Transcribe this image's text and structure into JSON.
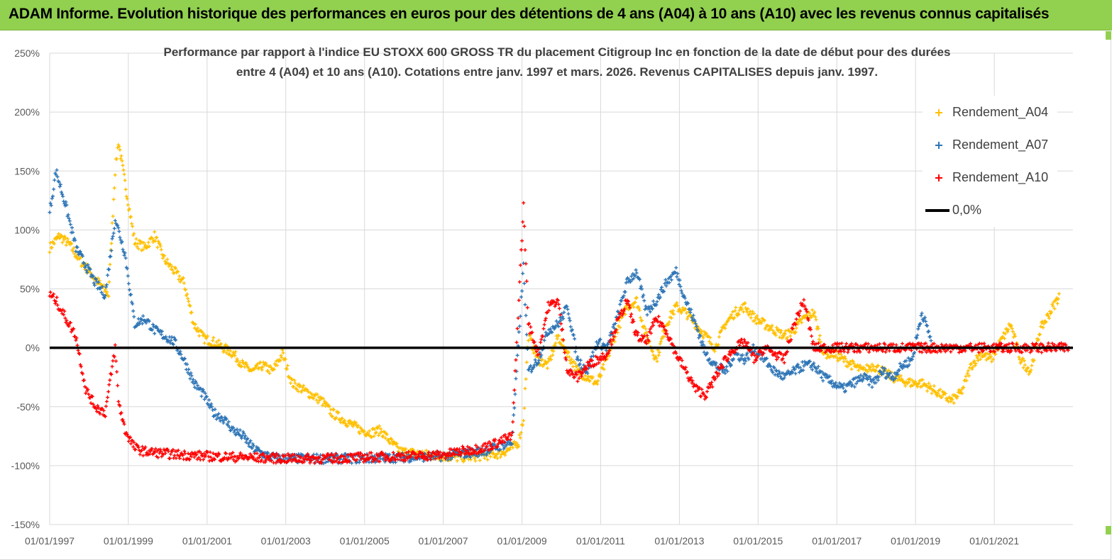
{
  "banner": {
    "title": "ADAM Informe. Evolution historique des performances en euros pour des détentions de 4 ans (A04) à 10 ans (A10) avec les revenus connus capitalisés"
  },
  "colors": {
    "banner": "#92d050",
    "A04": "#ffc000",
    "A07": "#2e75b6",
    "A10": "#ff0000",
    "zero_line": "#000000"
  },
  "chart_data": {
    "type": "scatter",
    "title_line1": "Performance par rapport à l'indice EU STOXX 600 GROSS TR  du placement Citigroup Inc en fonction de la date de début pour des durées",
    "title_line2": "entre 4 (A04) et 10 ans (A10). Cotations entre janv. 1997 et mars. 2026. Revenus CAPITALISES depuis janv. 1997.",
    "x_range": [
      "1997-01-01",
      "2023-01-01"
    ],
    "x_ticks": [
      "01/01/1997",
      "01/01/1999",
      "01/01/2001",
      "01/01/2003",
      "01/01/2005",
      "01/01/2007",
      "01/01/2009",
      "01/01/2011",
      "01/01/2013",
      "01/01/2015",
      "01/01/2017",
      "01/01/2019",
      "01/01/2021"
    ],
    "y_range": [
      -150,
      250
    ],
    "y_ticks": [
      "250%",
      "200%",
      "150%",
      "100%",
      "50%",
      "0%",
      "-50%",
      "-100%",
      "-150%"
    ],
    "grid": "vertical and horizontal, light gray",
    "legend_position": "top-right",
    "legend": [
      "Rendement_A04",
      "Rendement_A07",
      "Rendement_A10",
      "0,0%"
    ],
    "series": [
      {
        "name": "Rendement_A04",
        "x": [
          "1997-01-01",
          "1997-04-01",
          "1997-07-01",
          "1997-10-01",
          "1998-01-01",
          "1998-04-01",
          "1998-07-01",
          "1998-09-01",
          "1998-10-01",
          "1998-12-01",
          "1999-03-01",
          "1999-06-01",
          "1999-09-01",
          "1999-12-01",
          "2000-03-01",
          "2000-06-01",
          "2000-09-01",
          "2000-12-01",
          "2001-03-01",
          "2001-06-01",
          "2001-09-01",
          "2001-12-01",
          "2002-03-01",
          "2002-06-01",
          "2002-09-01",
          "2002-12-01",
          "2003-03-01",
          "2003-06-01",
          "2003-09-01",
          "2003-12-01",
          "2004-03-01",
          "2004-06-01",
          "2004-09-01",
          "2004-12-01",
          "2005-03-01",
          "2005-06-01",
          "2005-09-01",
          "2005-12-01",
          "2006-06-01",
          "2006-12-01",
          "2007-06-01",
          "2007-12-01",
          "2008-06-01",
          "2008-10-01",
          "2008-12-01",
          "2009-01-15",
          "2009-03-01",
          "2009-06-01",
          "2009-09-01",
          "2009-12-01",
          "2010-03-01",
          "2010-06-01",
          "2010-09-01",
          "2010-12-01",
          "2011-03-01",
          "2011-06-01",
          "2011-09-01",
          "2011-12-01",
          "2012-03-01",
          "2012-06-01",
          "2012-09-01",
          "2012-12-01",
          "2013-03-01",
          "2013-06-01",
          "2013-09-01",
          "2013-12-01",
          "2014-03-01",
          "2014-06-01",
          "2014-09-01",
          "2014-12-01",
          "2015-03-01",
          "2015-06-01",
          "2015-09-01",
          "2015-12-01",
          "2016-03-01",
          "2016-06-01",
          "2016-09-01",
          "2016-12-01",
          "2017-03-01",
          "2017-06-01",
          "2017-09-01",
          "2017-12-01",
          "2018-03-01",
          "2018-06-01",
          "2018-09-01",
          "2018-12-01",
          "2019-03-01",
          "2019-06-01",
          "2019-09-01",
          "2019-12-01",
          "2020-03-01",
          "2020-06-01",
          "2020-09-01",
          "2020-12-01",
          "2021-03-01",
          "2021-06-01",
          "2021-09-01",
          "2021-12-01",
          "2022-03-01",
          "2022-06-01",
          "2022-09-01"
        ],
        "y": [
          85,
          95,
          88,
          75,
          65,
          55,
          45,
          150,
          175,
          140,
          90,
          85,
          95,
          75,
          65,
          55,
          20,
          8,
          5,
          0,
          -5,
          -15,
          -20,
          -15,
          -20,
          -5,
          -30,
          -35,
          -40,
          -45,
          -55,
          -60,
          -65,
          -70,
          -72,
          -70,
          -80,
          -88,
          -90,
          -92,
          -93,
          -92,
          -90,
          -85,
          -80,
          -60,
          10,
          -10,
          -15,
          10,
          -5,
          -20,
          -25,
          -30,
          -10,
          15,
          35,
          40,
          10,
          -10,
          20,
          35,
          30,
          20,
          10,
          0,
          20,
          30,
          35,
          25,
          20,
          15,
          10,
          15,
          25,
          30,
          -5,
          -5,
          -10,
          -15,
          -20,
          -15,
          -20,
          -25,
          -28,
          -30,
          -30,
          -35,
          -40,
          -45,
          -38,
          -15,
          -5,
          -10,
          5,
          20,
          -10,
          -20,
          15,
          30,
          45
        ],
        "pattern": "dense daily series; values estimated from plot"
      },
      {
        "name": "Rendement_A07",
        "x": [
          "1997-01-01",
          "1997-03-01",
          "1997-06-01",
          "1997-09-01",
          "1997-12-01",
          "1998-03-01",
          "1998-06-01",
          "1998-09-01",
          "1998-10-01",
          "1998-12-01",
          "1999-03-01",
          "1999-06-01",
          "1999-09-01",
          "1999-12-01",
          "2000-03-01",
          "2000-06-01",
          "2000-09-01",
          "2000-12-01",
          "2001-03-01",
          "2001-06-01",
          "2001-09-01",
          "2001-12-01",
          "2002-03-01",
          "2002-06-01",
          "2002-09-01",
          "2003-01-01",
          "2004-01-01",
          "2005-01-01",
          "2006-01-01",
          "2007-01-01",
          "2008-01-01",
          "2008-10-01",
          "2009-01-15",
          "2009-03-01",
          "2009-06-01",
          "2009-09-01",
          "2009-12-01",
          "2010-03-01",
          "2010-06-01",
          "2010-09-01",
          "2010-12-01",
          "2011-03-01",
          "2011-06-01",
          "2011-09-01",
          "2011-12-01",
          "2012-03-01",
          "2012-06-01",
          "2012-09-01",
          "2012-12-01",
          "2013-03-01",
          "2013-06-01",
          "2013-09-01",
          "2013-12-01",
          "2014-03-01",
          "2014-06-01",
          "2014-09-01",
          "2014-12-01",
          "2015-03-01",
          "2015-06-01",
          "2015-09-01",
          "2015-12-01",
          "2016-03-01",
          "2016-06-01",
          "2016-09-01",
          "2016-12-01",
          "2017-03-01",
          "2017-06-01",
          "2017-09-01",
          "2017-12-01",
          "2018-03-01",
          "2018-06-01",
          "2018-09-01",
          "2018-12-01",
          "2019-03-01",
          "2019-06-01"
        ],
        "y": [
          115,
          150,
          120,
          85,
          70,
          55,
          45,
          110,
          100,
          80,
          20,
          25,
          15,
          10,
          5,
          -10,
          -30,
          -40,
          -55,
          -60,
          -70,
          -75,
          -85,
          -90,
          -93,
          -94,
          -94,
          -94,
          -93,
          -92,
          -88,
          -80,
          70,
          -20,
          -10,
          15,
          20,
          35,
          -10,
          -20,
          5,
          0,
          25,
          55,
          65,
          30,
          40,
          55,
          65,
          40,
          20,
          -5,
          -15,
          -20,
          -5,
          -10,
          0,
          -10,
          -20,
          -25,
          -20,
          -15,
          -15,
          -25,
          -30,
          -35,
          -30,
          -25,
          -30,
          -20,
          -25,
          -15,
          -10,
          30,
          5
        ]
      },
      {
        "name": "Rendement_A10",
        "x": [
          "1997-01-01",
          "1997-03-01",
          "1997-06-01",
          "1997-09-01",
          "1997-12-01",
          "1998-03-01",
          "1998-06-01",
          "1998-09-01",
          "1998-10-01",
          "1998-12-01",
          "1999-03-01",
          "1999-06-01",
          "2000-01-01",
          "2001-01-01",
          "2002-01-01",
          "2003-01-01",
          "2004-01-01",
          "2005-01-01",
          "2006-01-01",
          "2007-01-01",
          "2007-06-01",
          "2008-01-01",
          "2008-06-01",
          "2008-10-01",
          "2009-01-15",
          "2009-03-01",
          "2009-06-01",
          "2009-09-01",
          "2009-12-01",
          "2010-03-01",
          "2010-06-01",
          "2010-09-01",
          "2010-12-01",
          "2011-03-01",
          "2011-06-01",
          "2011-09-01",
          "2011-12-01",
          "2012-03-01",
          "2012-06-01",
          "2012-09-01",
          "2012-12-01",
          "2013-03-01",
          "2013-06-01",
          "2013-09-01",
          "2013-12-01",
          "2014-03-01",
          "2014-06-01",
          "2014-09-01",
          "2014-12-01",
          "2015-03-01",
          "2015-06-01",
          "2015-09-01",
          "2015-12-01",
          "2016-03-01",
          "2016-06-01",
          "2016-09-01",
          "2017-06-01",
          "2018-06-01",
          "2019-06-01",
          "2020-06-01",
          "2021-06-01",
          "2022-12-01"
        ],
        "y": [
          45,
          40,
          25,
          10,
          -35,
          -50,
          -55,
          0,
          -45,
          -70,
          -85,
          -88,
          -90,
          -92,
          -93,
          -94,
          -94,
          -93,
          -92,
          -91,
          -88,
          -85,
          -80,
          -75,
          120,
          20,
          -5,
          35,
          40,
          -20,
          -25,
          -15,
          -10,
          -5,
          20,
          40,
          10,
          5,
          25,
          15,
          -5,
          -20,
          -35,
          -40,
          -25,
          -10,
          0,
          5,
          -10,
          0,
          -5,
          -10,
          20,
          40,
          0,
          0,
          0,
          0,
          0,
          0,
          0,
          0
        ],
        "note": "from mid-2016 onward the A10 series is flat at 0%"
      },
      {
        "name": "0,0%",
        "x": [
          "1997-01-01",
          "2023-01-01"
        ],
        "y": [
          0,
          0
        ]
      }
    ]
  }
}
